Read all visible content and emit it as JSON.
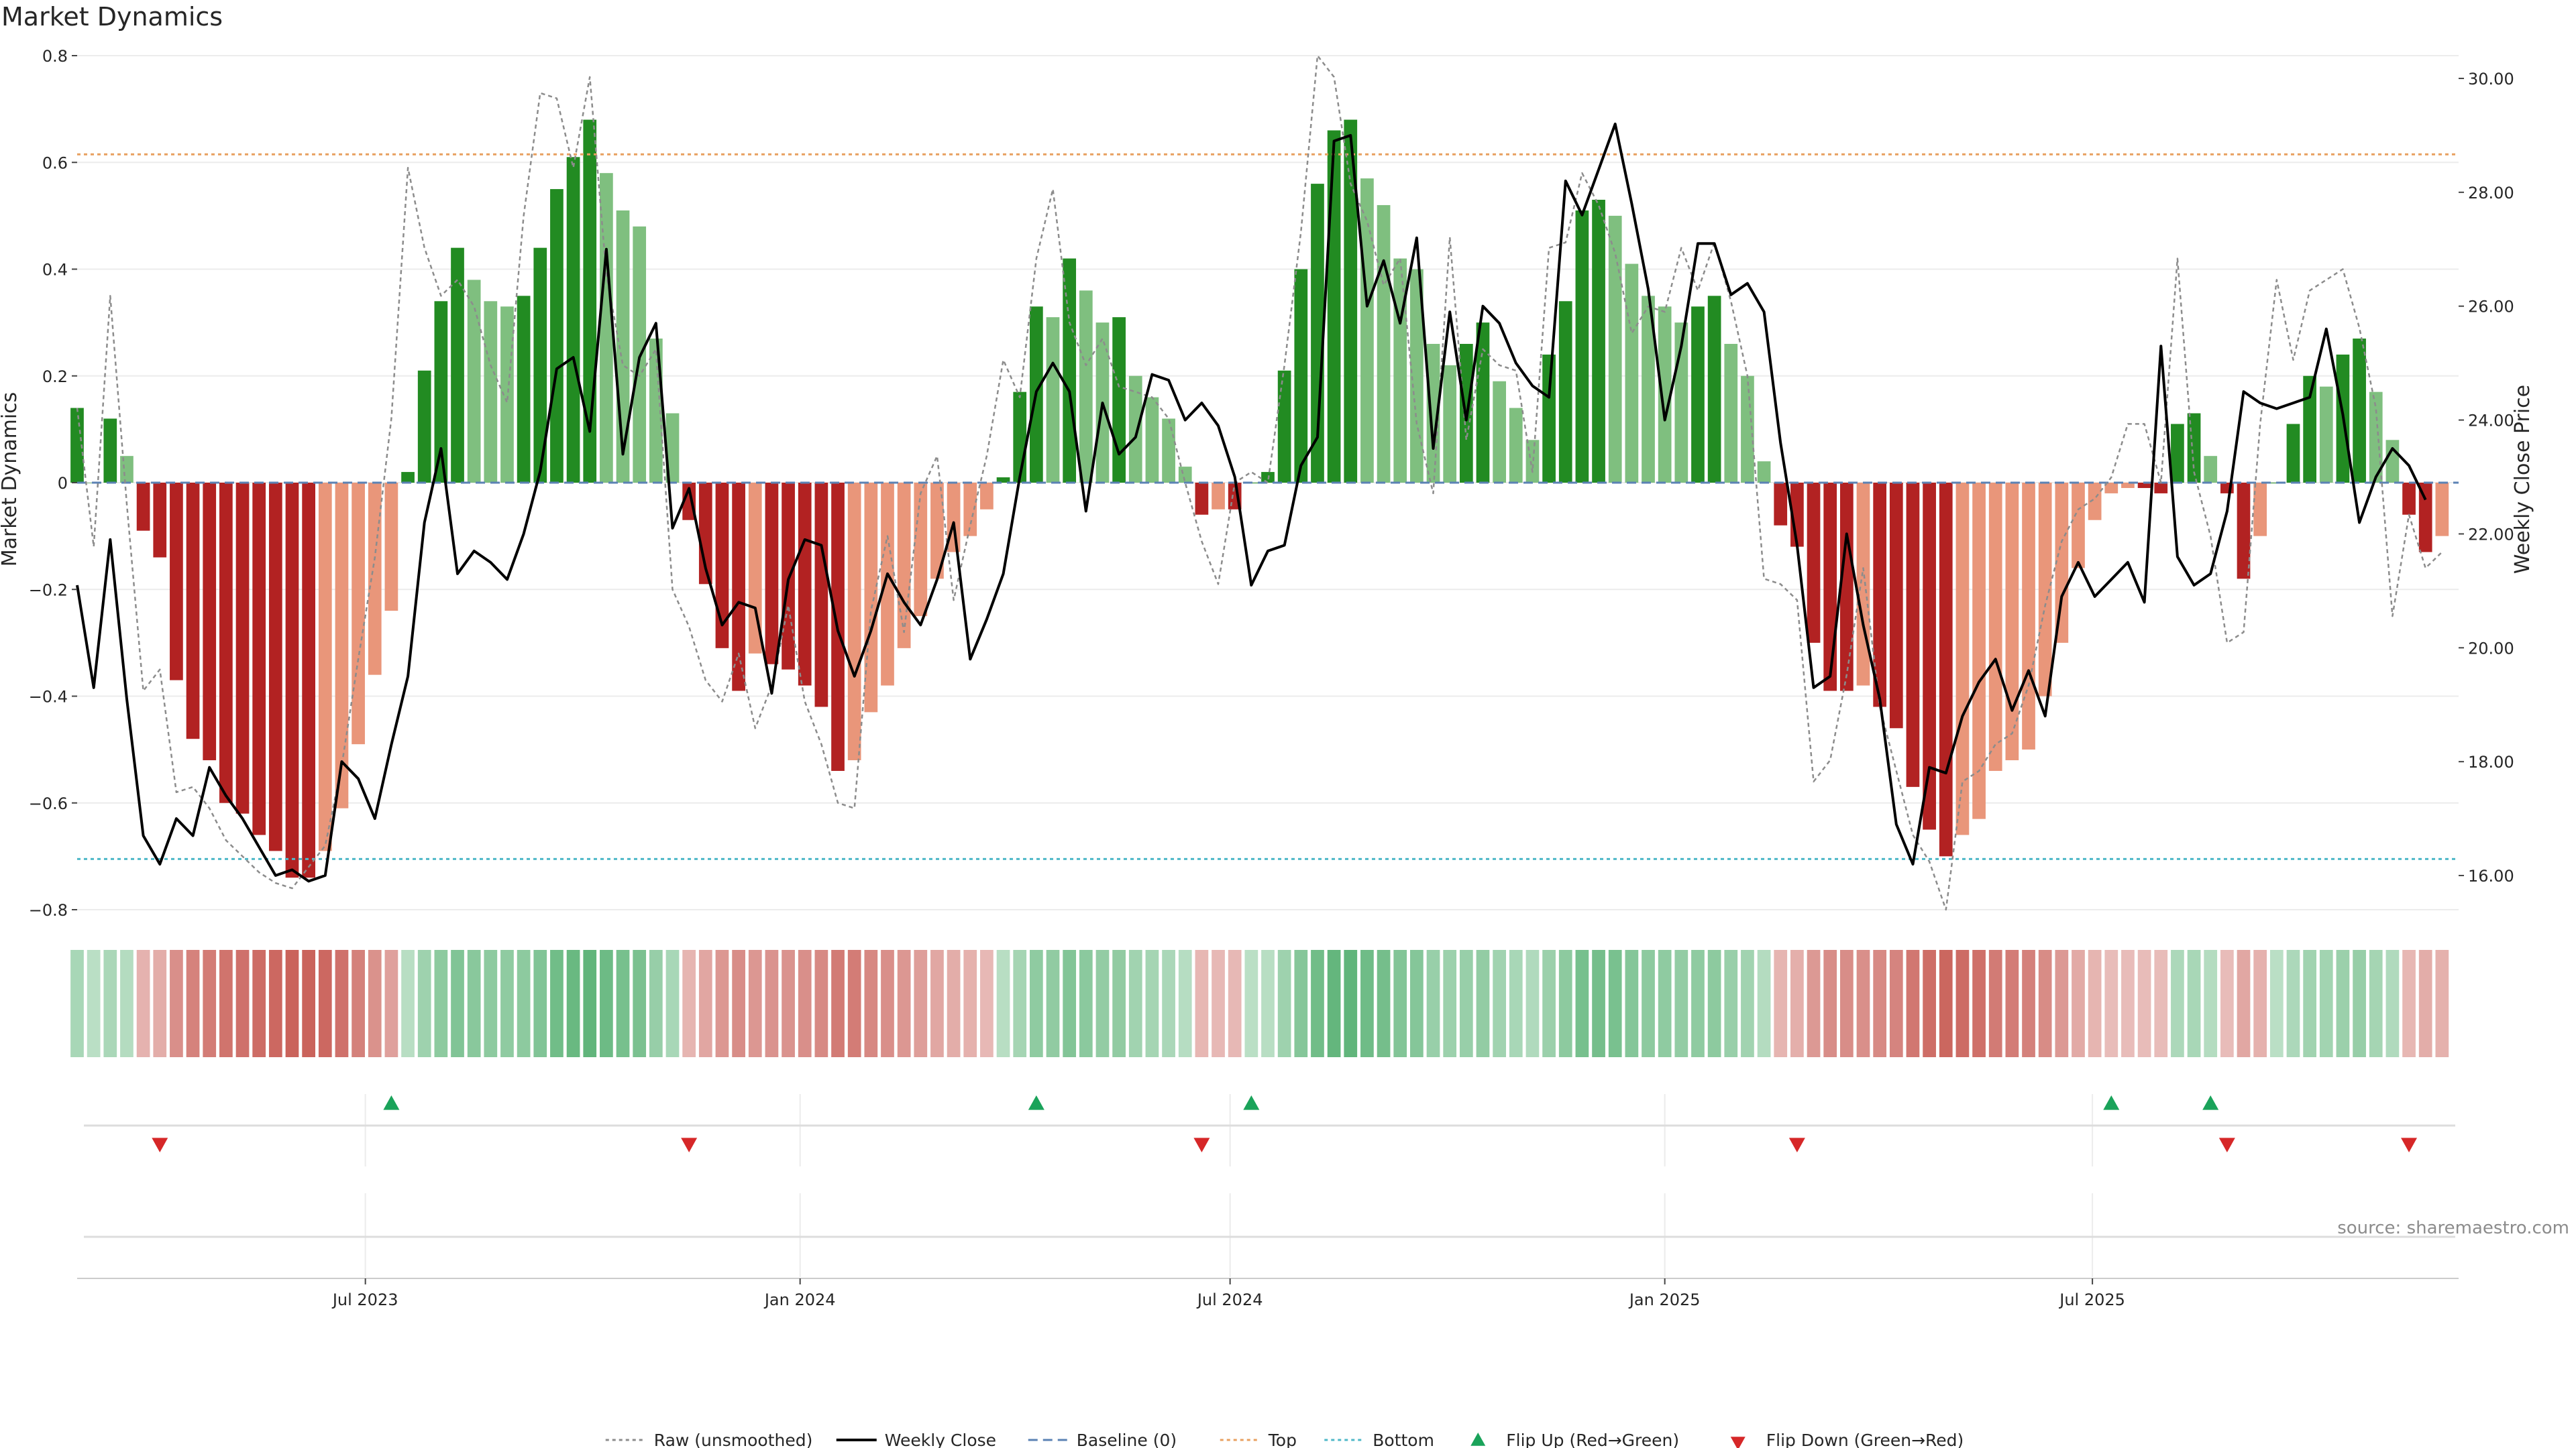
{
  "chart_data": {
    "type": "bar",
    "title": "Market Dynamics",
    "ylabel": "Market Dynamics",
    "ylabel_right": "Weekly Close Price",
    "ylim": [
      -0.8,
      0.8
    ],
    "ylim_right": [
      15.4,
      30.4
    ],
    "xlim": [
      "2023-03-01",
      "2025-12-03"
    ],
    "yticks": [
      0.8,
      0.6,
      0.4,
      0.2,
      0,
      -0.2,
      -0.4,
      -0.6,
      -0.8
    ],
    "yticklabels": [
      "0.8",
      "0.6",
      "0.4",
      "0.2",
      "0",
      "−0.2",
      "−0.4",
      "−0.6",
      "−0.8"
    ],
    "yticks_right": [
      16,
      18,
      20,
      22,
      24,
      26,
      28,
      30
    ],
    "yticklabels_right": [
      "16.00",
      "18.00",
      "20.00",
      "22.00",
      "24.00",
      "26.00",
      "28.00",
      "30.00"
    ],
    "xticks": [
      {
        "date": "2023-07-01",
        "label": "Jul 2023"
      },
      {
        "date": "2024-01-01",
        "label": "Jan 2024"
      },
      {
        "date": "2024-07-01",
        "label": "Jul 2024"
      },
      {
        "date": "2025-01-01",
        "label": "Jan 2025"
      },
      {
        "date": "2025-07-01",
        "label": "Jul 2025"
      }
    ],
    "start_week": "2023-03-01",
    "week_step_days": 7,
    "bars": [
      0.14,
      0,
      0.12,
      0.05,
      -0.09,
      -0.14,
      -0.37,
      -0.48,
      -0.52,
      -0.6,
      -0.62,
      -0.66,
      -0.69,
      -0.74,
      -0.74,
      -0.69,
      -0.61,
      -0.49,
      -0.36,
      -0.24,
      0.02,
      0.21,
      0.34,
      0.44,
      0.38,
      0.34,
      0.33,
      0.35,
      0.44,
      0.55,
      0.61,
      0.68,
      0.58,
      0.51,
      0.48,
      0.27,
      0.13,
      -0.07,
      -0.19,
      -0.31,
      -0.39,
      -0.32,
      -0.34,
      -0.35,
      -0.38,
      -0.42,
      -0.54,
      -0.52,
      -0.43,
      -0.38,
      -0.31,
      -0.25,
      -0.18,
      -0.13,
      -0.1,
      -0.05,
      0.01,
      0.17,
      0.33,
      0.31,
      0.42,
      0.36,
      0.3,
      0.31,
      0.2,
      0.16,
      0.12,
      0.03,
      -0.06,
      -0.05,
      -0.05,
      0,
      0.02,
      0.21,
      0.4,
      0.56,
      0.66,
      0.68,
      0.57,
      0.52,
      0.42,
      0.4,
      0.26,
      0.22,
      0.26,
      0.3,
      0.19,
      0.14,
      0.08,
      0.24,
      0.34,
      0.51,
      0.53,
      0.5,
      0.41,
      0.35,
      0.33,
      0.3,
      0.33,
      0.35,
      0.26,
      0.2,
      0.04,
      -0.08,
      -0.12,
      -0.3,
      -0.39,
      -0.39,
      -0.38,
      -0.42,
      -0.46,
      -0.57,
      -0.65,
      -0.7,
      -0.66,
      -0.63,
      -0.54,
      -0.52,
      -0.5,
      -0.4,
      -0.3,
      -0.16,
      -0.07,
      -0.02,
      -0.01,
      -0.01,
      -0.02,
      0.11,
      0.13,
      0.05,
      -0.02,
      -0.18,
      -0.1,
      0,
      0.11,
      0.2,
      0.18,
      0.24,
      0.27,
      0.17,
      0.08,
      -0.06,
      -0.13,
      -0.1
    ],
    "series": [
      {
        "name": "Raw (unsmoothed)",
        "color": "#8c8c8c",
        "axis": "left",
        "values": [
          0.14,
          -0.12,
          0.35,
          -0.04,
          -0.39,
          -0.35,
          -0.58,
          -0.57,
          -0.61,
          -0.67,
          -0.7,
          -0.73,
          -0.75,
          -0.76,
          -0.72,
          -0.68,
          -0.53,
          -0.33,
          -0.14,
          0.12,
          0.59,
          0.44,
          0.35,
          0.38,
          0.33,
          0.22,
          0.15,
          0.5,
          0.73,
          0.72,
          0.59,
          0.76,
          0.39,
          0.22,
          0.2,
          0.25,
          -0.2,
          -0.27,
          -0.37,
          -0.41,
          -0.32,
          -0.46,
          -0.38,
          -0.23,
          -0.41,
          -0.49,
          -0.6,
          -0.61,
          -0.24,
          -0.1,
          -0.28,
          -0.02,
          0.05,
          -0.22,
          -0.08,
          0.05,
          0.23,
          0.16,
          0.42,
          0.55,
          0.3,
          0.22,
          0.27,
          0.18,
          0.17,
          0.16,
          0.12,
          0.0,
          -0.11,
          -0.19,
          0.0,
          0.02,
          0.0,
          0.22,
          0.47,
          0.8,
          0.76,
          0.56,
          0.49,
          0.37,
          0.42,
          0.11,
          -0.02,
          0.46,
          0.08,
          0.25,
          0.22,
          0.21,
          0.02,
          0.44,
          0.45,
          0.58,
          0.52,
          0.43,
          0.28,
          0.33,
          0.32,
          0.44,
          0.36,
          0.45,
          0.34,
          0.2,
          -0.18,
          -0.19,
          -0.22,
          -0.56,
          -0.52,
          -0.36,
          -0.16,
          -0.42,
          -0.54,
          -0.66,
          -0.71,
          -0.8,
          -0.56,
          -0.54,
          -0.49,
          -0.47,
          -0.38,
          -0.23,
          -0.11,
          -0.05,
          -0.03,
          0.01,
          0.11,
          0.11,
          0.0,
          0.42,
          0.02,
          -0.1,
          -0.3,
          -0.28,
          0.11,
          0.38,
          0.23,
          0.36,
          0.38,
          0.4,
          0.29,
          0.14,
          -0.25,
          -0.06,
          -0.16,
          -0.13
        ]
      },
      {
        "name": "Weekly Close",
        "color": "#000000",
        "axis": "right",
        "values": [
          21.1,
          19.3,
          21.9,
          19.1,
          16.7,
          16.2,
          17.0,
          16.7,
          17.9,
          17.4,
          17.0,
          16.5,
          16.0,
          16.1,
          15.9,
          16.0,
          18.0,
          17.7,
          17.0,
          18.3,
          19.5,
          22.2,
          23.5,
          21.3,
          21.7,
          21.5,
          21.2,
          22.0,
          23.1,
          24.9,
          25.1,
          23.8,
          27.0,
          23.4,
          25.1,
          25.7,
          22.1,
          22.8,
          21.4,
          20.4,
          20.8,
          20.7,
          19.2,
          21.2,
          21.9,
          21.8,
          20.3,
          19.5,
          20.3,
          21.3,
          20.8,
          20.4,
          21.2,
          22.2,
          19.8,
          20.5,
          21.3,
          23.0,
          24.5,
          25.0,
          24.5,
          22.4,
          24.3,
          23.4,
          23.7,
          24.8,
          24.7,
          24.0,
          24.3,
          23.9,
          23.0,
          21.1,
          21.7,
          21.8,
          23.2,
          23.7,
          28.9,
          29.0,
          26.0,
          26.8,
          25.7,
          27.2,
          23.5,
          25.9,
          24.0,
          26.0,
          25.7,
          25.0,
          24.6,
          24.4,
          28.2,
          27.6,
          28.4,
          29.2,
          27.8,
          26.3,
          24.0,
          25.3,
          27.1,
          27.1,
          26.2,
          26.4,
          25.9,
          23.6,
          21.8,
          19.3,
          19.5,
          22.0,
          20.4,
          19.1,
          16.9,
          16.2,
          17.9,
          17.8,
          18.8,
          19.4,
          19.8,
          18.9,
          19.6,
          18.8,
          20.9,
          21.5,
          20.9,
          21.2,
          21.5,
          20.8,
          25.3,
          21.6,
          21.1,
          21.3,
          22.4,
          24.5,
          24.3,
          24.2,
          24.3,
          24.4,
          25.6,
          24.1,
          22.2,
          23.0,
          23.5,
          23.2,
          22.6
        ]
      }
    ],
    "reference_lines": [
      {
        "name": "Baseline (0)",
        "value": 0,
        "axis": "left",
        "color": "#5b82b4"
      },
      {
        "name": "Top",
        "value": 0.615,
        "axis": "left",
        "color": "#e8a060"
      },
      {
        "name": "Bottom",
        "value": -0.705,
        "axis": "left",
        "color": "#4fb8c8"
      }
    ],
    "flips_up": [
      "2023-07-12",
      "2024-04-10",
      "2024-07-10",
      "2025-07-09",
      "2025-08-20"
    ],
    "flips_down": [
      "2023-04-05",
      "2023-11-15",
      "2024-06-19",
      "2025-02-26",
      "2025-08-27",
      "2025-11-12"
    ],
    "colors": {
      "green_strong": "#228b22",
      "green_light": "#7fbf7f",
      "red_strong": "#b22222",
      "red_light": "#e9967a",
      "flip_up": "#1aa35a",
      "flip_down": "#d62728"
    },
    "legend": {
      "placement": "bottom-center",
      "entries": [
        {
          "label": "Raw (unsmoothed)",
          "style": "dotted",
          "color": "#8c8c8c"
        },
        {
          "label": "Weekly Close",
          "style": "solid",
          "color": "#000000"
        },
        {
          "label": "Baseline (0)",
          "style": "dashed",
          "color": "#5b82b4"
        },
        {
          "label": "Top",
          "style": "dotted",
          "color": "#e8a060"
        },
        {
          "label": "Bottom",
          "style": "dotted",
          "color": "#4fb8c8"
        },
        {
          "label": "Flip Up (Red→Green)",
          "style": "triangle-up",
          "color": "#1aa35a"
        },
        {
          "label": "Flip Down (Green→Red)",
          "style": "triangle-down",
          "color": "#d62728"
        }
      ]
    },
    "source": "source: sharemaestro.com"
  }
}
